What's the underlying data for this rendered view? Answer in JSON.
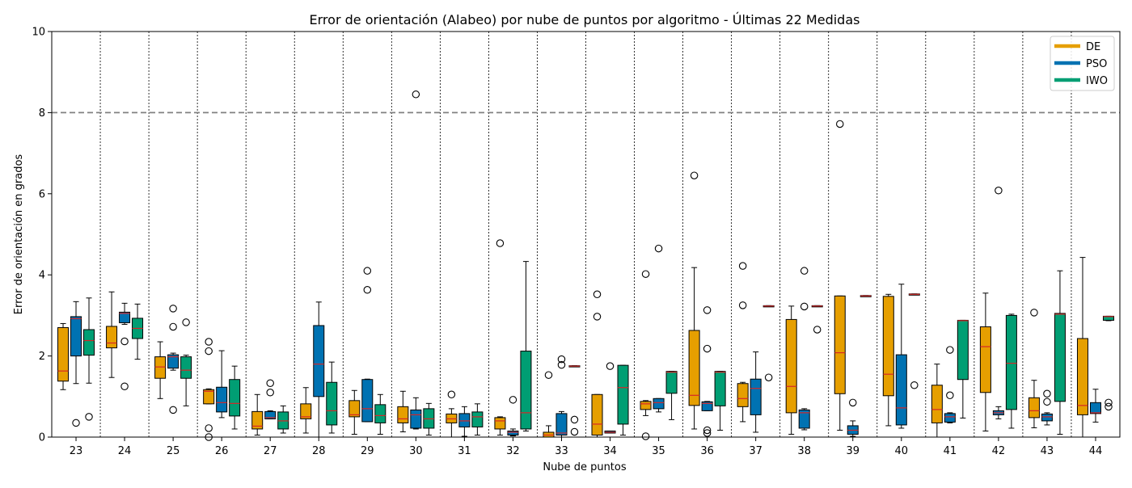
{
  "chart_data": {
    "type": "box",
    "title": "Error de orientación (Alabeo) por nube de puntos por algoritmo - Últimas 22 Medidas",
    "xlabel": "Nube de puntos",
    "ylabel": "Error de orientación en grados",
    "ylim": [
      0,
      10
    ],
    "yticks": [
      0,
      2,
      4,
      6,
      8,
      10
    ],
    "reference_line": {
      "y": 8,
      "style": "dashed",
      "color": "#808080"
    },
    "grid": "vertical dotted separators between groups",
    "legend_position": "top-right",
    "colors": {
      "DE": "#E69F00",
      "PSO": "#0072B2",
      "IWO": "#009E73",
      "median": "#D62728"
    },
    "series_order": [
      "DE",
      "PSO",
      "IWO"
    ],
    "legend": [
      {
        "name": "DE",
        "color": "#E69F00"
      },
      {
        "name": "PSO",
        "color": "#0072B2"
      },
      {
        "name": "IWO",
        "color": "#009E73"
      }
    ],
    "groups": [
      {
        "label": "23",
        "DE": {
          "wl": 1.17,
          "q1": 1.38,
          "med": 1.63,
          "q3": 2.7,
          "wh": 2.8,
          "out": []
        },
        "PSO": {
          "wl": 1.32,
          "q1": 2.0,
          "med": 2.92,
          "q3": 2.97,
          "wh": 3.34,
          "out": [
            0.35
          ]
        },
        "IWO": {
          "wl": 1.33,
          "q1": 2.02,
          "med": 2.38,
          "q3": 2.65,
          "wh": 3.43,
          "out": [
            0.5
          ]
        }
      },
      {
        "label": "24",
        "DE": {
          "wl": 1.47,
          "q1": 2.2,
          "med": 2.32,
          "q3": 2.73,
          "wh": 3.58,
          "out": []
        },
        "PSO": {
          "wl": 2.78,
          "q1": 2.82,
          "med": 3.05,
          "q3": 3.08,
          "wh": 3.3,
          "out": [
            2.36,
            1.25
          ]
        },
        "IWO": {
          "wl": 1.92,
          "q1": 2.43,
          "med": 2.68,
          "q3": 2.93,
          "wh": 3.28,
          "out": []
        }
      },
      {
        "label": "25",
        "DE": {
          "wl": 0.95,
          "q1": 1.45,
          "med": 1.73,
          "q3": 1.98,
          "wh": 2.35,
          "out": []
        },
        "PSO": {
          "wl": 1.65,
          "q1": 1.7,
          "med": 1.98,
          "q3": 2.03,
          "wh": 2.07,
          "out": [
            3.17,
            2.72,
            0.67
          ]
        },
        "IWO": {
          "wl": 0.77,
          "q1": 1.45,
          "med": 1.65,
          "q3": 1.98,
          "wh": 2.02,
          "out": [
            2.83
          ]
        }
      },
      {
        "label": "26",
        "DE": {
          "wl": 0.82,
          "q1": 0.82,
          "med": 1.13,
          "q3": 1.17,
          "wh": 1.19,
          "out": [
            2.35,
            2.12,
            0.22,
            0.0
          ]
        },
        "PSO": {
          "wl": 0.48,
          "q1": 0.62,
          "med": 0.85,
          "q3": 1.23,
          "wh": 2.13,
          "out": []
        },
        "IWO": {
          "wl": 0.2,
          "q1": 0.52,
          "med": 0.83,
          "q3": 1.42,
          "wh": 1.75,
          "out": []
        }
      },
      {
        "label": "27",
        "DE": {
          "wl": 0.05,
          "q1": 0.2,
          "med": 0.27,
          "q3": 0.63,
          "wh": 1.05,
          "out": []
        },
        "PSO": {
          "wl": 0.45,
          "q1": 0.45,
          "med": 0.48,
          "q3": 0.63,
          "wh": 0.65,
          "out": [
            1.33,
            1.1
          ]
        },
        "IWO": {
          "wl": 0.1,
          "q1": 0.2,
          "med": 0.4,
          "q3": 0.62,
          "wh": 0.77,
          "out": []
        }
      },
      {
        "label": "28",
        "DE": {
          "wl": 0.1,
          "q1": 0.45,
          "med": 0.5,
          "q3": 0.82,
          "wh": 1.22,
          "out": []
        },
        "PSO": {
          "wl": 0.0,
          "q1": 1.0,
          "med": 1.8,
          "q3": 2.75,
          "wh": 3.33,
          "out": []
        },
        "IWO": {
          "wl": 0.1,
          "q1": 0.3,
          "med": 0.65,
          "q3": 1.35,
          "wh": 1.85,
          "out": []
        }
      },
      {
        "label": "29",
        "DE": {
          "wl": 0.07,
          "q1": 0.5,
          "med": 0.55,
          "q3": 0.9,
          "wh": 1.15,
          "out": []
        },
        "PSO": {
          "wl": 0.38,
          "q1": 0.38,
          "med": 0.7,
          "q3": 1.42,
          "wh": 1.43,
          "out": [
            4.1,
            3.63
          ]
        },
        "IWO": {
          "wl": 0.07,
          "q1": 0.35,
          "med": 0.53,
          "q3": 0.8,
          "wh": 1.05,
          "out": []
        }
      },
      {
        "label": "30",
        "DE": {
          "wl": 0.13,
          "q1": 0.35,
          "med": 0.45,
          "q3": 0.75,
          "wh": 1.13,
          "out": []
        },
        "PSO": {
          "wl": 0.2,
          "q1": 0.22,
          "med": 0.55,
          "q3": 0.67,
          "wh": 0.97,
          "out": [
            8.45
          ]
        },
        "IWO": {
          "wl": 0.05,
          "q1": 0.22,
          "med": 0.45,
          "q3": 0.7,
          "wh": 0.83,
          "out": []
        }
      },
      {
        "label": "31",
        "DE": {
          "wl": 0.0,
          "q1": 0.35,
          "med": 0.45,
          "q3": 0.57,
          "wh": 0.7,
          "out": [
            1.05
          ]
        },
        "PSO": {
          "wl": 0.02,
          "q1": 0.25,
          "med": 0.4,
          "q3": 0.58,
          "wh": 0.75,
          "out": []
        },
        "IWO": {
          "wl": 0.05,
          "q1": 0.25,
          "med": 0.5,
          "q3": 0.62,
          "wh": 0.82,
          "out": []
        }
      },
      {
        "label": "32",
        "DE": {
          "wl": 0.05,
          "q1": 0.2,
          "med": 0.4,
          "q3": 0.48,
          "wh": 0.5,
          "out": [
            4.78
          ]
        },
        "PSO": {
          "wl": 0.03,
          "q1": 0.05,
          "med": 0.12,
          "q3": 0.15,
          "wh": 0.2,
          "out": [
            0.92
          ]
        },
        "IWO": {
          "wl": 0.15,
          "q1": 0.2,
          "med": 0.6,
          "q3": 2.12,
          "wh": 4.33,
          "out": []
        }
      },
      {
        "label": "33",
        "DE": {
          "wl": 0.0,
          "q1": 0.0,
          "med": 0.05,
          "q3": 0.12,
          "wh": 0.28,
          "out": [
            1.53
          ]
        },
        "PSO": {
          "wl": 0.0,
          "q1": 0.05,
          "med": 0.1,
          "q3": 0.58,
          "wh": 0.63,
          "out": [
            1.92,
            1.78
          ]
        },
        "IWO": {
          "wl": 1.75,
          "q1": 1.75,
          "med": 1.75,
          "q3": 1.76,
          "wh": 1.76,
          "out": [
            0.43,
            0.13
          ]
        }
      },
      {
        "label": "34",
        "DE": {
          "wl": 0.0,
          "q1": 0.05,
          "med": 0.32,
          "q3": 1.05,
          "wh": 1.05,
          "out": [
            3.52,
            2.97
          ]
        },
        "PSO": {
          "wl": 0.1,
          "q1": 0.1,
          "med": 0.12,
          "q3": 0.15,
          "wh": 0.15,
          "out": [
            1.75
          ]
        },
        "IWO": {
          "wl": 0.05,
          "q1": 0.32,
          "med": 1.22,
          "q3": 1.77,
          "wh": 1.77,
          "out": []
        }
      },
      {
        "label": "35",
        "DE": {
          "wl": 0.53,
          "q1": 0.68,
          "med": 0.82,
          "q3": 0.88,
          "wh": 0.9,
          "out": [
            4.02,
            0.02
          ]
        },
        "PSO": {
          "wl": 0.62,
          "q1": 0.7,
          "med": 0.85,
          "q3": 0.95,
          "wh": 0.95,
          "out": [
            4.65
          ]
        },
        "IWO": {
          "wl": 0.43,
          "q1": 1.08,
          "med": 1.6,
          "q3": 1.62,
          "wh": 1.62,
          "out": []
        }
      },
      {
        "label": "36",
        "DE": {
          "wl": 0.2,
          "q1": 0.78,
          "med": 1.03,
          "q3": 2.63,
          "wh": 4.18,
          "out": [
            6.45
          ]
        },
        "PSO": {
          "wl": 0.65,
          "q1": 0.65,
          "med": 0.83,
          "q3": 0.87,
          "wh": 0.88,
          "out": [
            3.13,
            2.18,
            0.17,
            0.1
          ]
        },
        "IWO": {
          "wl": 0.17,
          "q1": 0.77,
          "med": 1.6,
          "q3": 1.62,
          "wh": 1.62,
          "out": []
        }
      },
      {
        "label": "37",
        "DE": {
          "wl": 0.38,
          "q1": 0.75,
          "med": 0.95,
          "q3": 1.32,
          "wh": 1.35,
          "out": [
            4.22,
            3.25
          ]
        },
        "PSO": {
          "wl": 0.12,
          "q1": 0.55,
          "med": 1.2,
          "q3": 1.43,
          "wh": 2.1,
          "out": []
        },
        "IWO": {
          "wl": 3.23,
          "q1": 3.23,
          "med": 3.23,
          "q3": 3.24,
          "wh": 3.24,
          "out": [
            1.47
          ]
        }
      },
      {
        "label": "38",
        "DE": {
          "wl": 0.07,
          "q1": 0.6,
          "med": 1.25,
          "q3": 2.9,
          "wh": 3.23,
          "out": []
        },
        "PSO": {
          "wl": 0.18,
          "q1": 0.22,
          "med": 0.6,
          "q3": 0.67,
          "wh": 0.7,
          "out": [
            4.1,
            3.22
          ]
        },
        "IWO": {
          "wl": 3.23,
          "q1": 3.23,
          "med": 3.23,
          "q3": 3.24,
          "wh": 3.24,
          "out": [
            2.65
          ]
        }
      },
      {
        "label": "39",
        "DE": {
          "wl": 0.17,
          "q1": 1.07,
          "med": 2.08,
          "q3": 3.48,
          "wh": 3.48,
          "out": [
            7.72
          ]
        },
        "PSO": {
          "wl": 0.02,
          "q1": 0.07,
          "med": 0.17,
          "q3": 0.28,
          "wh": 0.4,
          "out": [
            0.85
          ]
        },
        "IWO": {
          "wl": 3.48,
          "q1": 3.48,
          "med": 3.48,
          "q3": 3.49,
          "wh": 3.49,
          "out": []
        }
      },
      {
        "label": "40",
        "DE": {
          "wl": 0.28,
          "q1": 1.02,
          "med": 1.55,
          "q3": 3.47,
          "wh": 3.52,
          "out": []
        },
        "PSO": {
          "wl": 0.22,
          "q1": 0.3,
          "med": 0.72,
          "q3": 2.03,
          "wh": 3.77,
          "out": []
        },
        "IWO": {
          "wl": 3.52,
          "q1": 3.52,
          "med": 3.52,
          "q3": 3.53,
          "wh": 3.53,
          "out": [
            1.28
          ]
        }
      },
      {
        "label": "41",
        "DE": {
          "wl": 0.0,
          "q1": 0.35,
          "med": 0.68,
          "q3": 1.28,
          "wh": 1.8,
          "out": []
        },
        "PSO": {
          "wl": 0.35,
          "q1": 0.37,
          "med": 0.5,
          "q3": 0.58,
          "wh": 0.6,
          "out": [
            2.15,
            1.03
          ]
        },
        "IWO": {
          "wl": 0.47,
          "q1": 1.42,
          "med": 2.87,
          "q3": 2.88,
          "wh": 2.88,
          "out": []
        }
      },
      {
        "label": "42",
        "DE": {
          "wl": 0.15,
          "q1": 1.1,
          "med": 2.23,
          "q3": 2.72,
          "wh": 3.55,
          "out": []
        },
        "PSO": {
          "wl": 0.45,
          "q1": 0.55,
          "med": 0.6,
          "q3": 0.65,
          "wh": 0.75,
          "out": [
            6.08
          ]
        },
        "IWO": {
          "wl": 0.22,
          "q1": 0.68,
          "med": 1.82,
          "q3": 3.0,
          "wh": 3.03,
          "out": []
        }
      },
      {
        "label": "43",
        "DE": {
          "wl": 0.23,
          "q1": 0.48,
          "med": 0.65,
          "q3": 0.97,
          "wh": 1.4,
          "out": [
            3.07
          ]
        },
        "PSO": {
          "wl": 0.3,
          "q1": 0.4,
          "med": 0.5,
          "q3": 0.57,
          "wh": 0.6,
          "out": [
            1.07,
            0.87
          ]
        },
        "IWO": {
          "wl": 0.07,
          "q1": 0.88,
          "med": 3.03,
          "q3": 3.05,
          "wh": 4.1,
          "out": []
        }
      },
      {
        "label": "44",
        "DE": {
          "wl": 0.0,
          "q1": 0.55,
          "med": 0.78,
          "q3": 2.43,
          "wh": 4.43,
          "out": []
        },
        "PSO": {
          "wl": 0.37,
          "q1": 0.58,
          "med": 0.6,
          "q3": 0.85,
          "wh": 1.18,
          "out": []
        },
        "IWO": {
          "wl": 2.87,
          "q1": 2.88,
          "med": 2.97,
          "q3": 2.98,
          "wh": 2.98,
          "out": [
            0.85,
            0.75
          ]
        }
      }
    ]
  }
}
